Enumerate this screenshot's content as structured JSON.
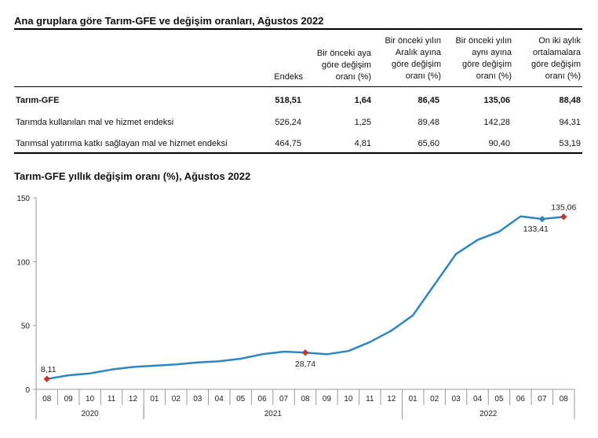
{
  "table": {
    "title": "Ana gruplara göre Tarım-GFE ve değişim oranları, Ağustos 2022",
    "headers": [
      "Endeks",
      "Bir önceki aya\ngöre değişim\noranı (%)",
      "Bir önceki yılın\nAralık ayına\ngöre değişim\noranı (%)",
      "Bir önceki yılın\naynı ayına\ngöre değişim\noranı (%)",
      "On iki aylık\nortalamalara\ngöre değişim\noranı (%)"
    ],
    "rows": [
      {
        "label": "Tarım-GFE",
        "values": [
          "518,51",
          "1,64",
          "86,45",
          "135,06",
          "88,48"
        ]
      },
      {
        "label": "Tarımda kullanılan mal ve hizmet endeksi",
        "values": [
          "526,24",
          "1,25",
          "89,48",
          "142,28",
          "94,31"
        ]
      },
      {
        "label": "Tarımsal yatırıma katkı sağlayan mal ve hizmet endeksi",
        "values": [
          "464,75",
          "4,81",
          "65,60",
          "90,40",
          "53,19"
        ]
      }
    ]
  },
  "chart_data": {
    "type": "line",
    "title": "Tarım-GFE yıllık değişim oranı (%), Ağustos 2022",
    "categories": [
      "08",
      "09",
      "10",
      "11",
      "12",
      "01",
      "02",
      "03",
      "04",
      "05",
      "06",
      "07",
      "08",
      "09",
      "10",
      "11",
      "12",
      "01",
      "02",
      "03",
      "04",
      "05",
      "06",
      "07",
      "08"
    ],
    "years": [
      {
        "label": "2020",
        "from": 0,
        "to": 4
      },
      {
        "label": "2021",
        "from": 5,
        "to": 16
      },
      {
        "label": "2022",
        "from": 17,
        "to": 24
      }
    ],
    "series": [
      {
        "values": [
          8.11,
          11.0,
          12.5,
          15.5,
          17.5,
          18.5,
          19.5,
          21.0,
          22.0,
          24.0,
          27.5,
          29.5,
          28.74,
          27.5,
          30.0,
          37.0,
          46.0,
          58.0,
          82.0,
          106.0,
          117.0,
          123.5,
          135.5,
          133.41,
          135.06
        ]
      }
    ],
    "ylim": [
      0,
      150
    ],
    "yticks": [
      0,
      50,
      100,
      150
    ],
    "markers": [
      {
        "index": 0,
        "label": "8,11",
        "color": "#c0392b"
      },
      {
        "index": 12,
        "label": "28,74",
        "color": "#c0392b"
      },
      {
        "index": 23,
        "label": "133,41",
        "color": "#2e86c1"
      },
      {
        "index": 24,
        "label": "135,06",
        "color": "#c0392b"
      }
    ],
    "line_color": "#2e86c1"
  }
}
